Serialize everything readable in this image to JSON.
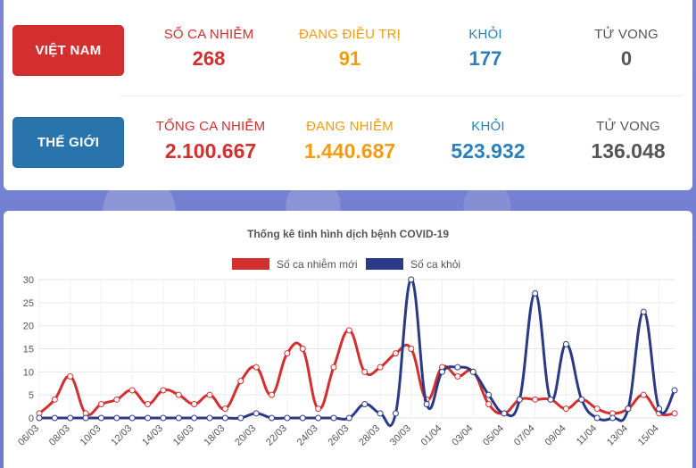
{
  "vietnam": {
    "label": "VIỆT NAM",
    "stats": [
      {
        "label": "SỐ CA NHIỄM",
        "value": "268"
      },
      {
        "label": "ĐANG ĐIỀU TRỊ",
        "value": "91"
      },
      {
        "label": "KHỎI",
        "value": "177"
      },
      {
        "label": "TỬ VONG",
        "value": "0"
      }
    ]
  },
  "world": {
    "label": "THẾ GIỚI",
    "stats": [
      {
        "label": "TỔNG CA NHIỄM",
        "value": "2.100.667"
      },
      {
        "label": "ĐANG NHIỄM",
        "value": "1.440.687"
      },
      {
        "label": "KHỎI",
        "value": "523.932"
      },
      {
        "label": "TỬ VONG",
        "value": "136.048"
      }
    ]
  },
  "colors": {
    "red": "#d32f2f",
    "navy": "#2b3a86"
  },
  "chart_data": {
    "type": "line",
    "title": "Thống kê tình hình dịch bệnh COVID-19",
    "x": [
      "06/03",
      "07/03",
      "08/03",
      "09/03",
      "10/03",
      "11/03",
      "12/03",
      "13/03",
      "14/03",
      "15/03",
      "16/03",
      "17/03",
      "18/03",
      "19/03",
      "20/03",
      "21/03",
      "22/03",
      "23/03",
      "24/03",
      "25/03",
      "26/03",
      "27/03",
      "28/03",
      "29/03",
      "30/03",
      "31/03",
      "01/04",
      "02/04",
      "03/04",
      "04/04",
      "05/04",
      "06/04",
      "07/04",
      "08/04",
      "09/04",
      "10/04",
      "11/04",
      "12/04",
      "13/04",
      "14/04",
      "15/04",
      "16/04"
    ],
    "tick_labels": [
      "06/03",
      "08/03",
      "10/03",
      "12/03",
      "14/03",
      "16/03",
      "18/03",
      "20/03",
      "22/03",
      "24/03",
      "26/03",
      "28/03",
      "30/03",
      "01/04",
      "03/04",
      "05/04",
      "07/04",
      "09/04",
      "11/04",
      "13/04",
      "15/04"
    ],
    "ylim": [
      0,
      30
    ],
    "yticks": [
      "0",
      "5",
      "10",
      "15",
      "20",
      "25",
      "30"
    ],
    "legend_position": "top",
    "series": [
      {
        "name": "Số ca nhiễm mới",
        "color": "#d32f2f",
        "values": [
          1,
          4,
          9,
          1,
          3,
          4,
          6,
          3,
          6,
          5,
          3,
          5,
          2,
          8,
          11,
          5,
          14,
          15,
          2,
          11,
          19,
          10,
          11,
          14,
          15,
          4,
          11,
          9,
          10,
          3,
          1,
          4,
          4,
          4,
          2,
          4,
          2,
          1,
          2,
          5,
          1,
          1
        ]
      },
      {
        "name": "Số ca khỏi",
        "color": "#2b3a86",
        "values": [
          0,
          0,
          0,
          0,
          0,
          0,
          0,
          0,
          0,
          0,
          0,
          0,
          0,
          0,
          1,
          0,
          0,
          0,
          0,
          0,
          0,
          3,
          1,
          1,
          30,
          3,
          10,
          11,
          10,
          5,
          1,
          4,
          27,
          4,
          16,
          4,
          0,
          0,
          2,
          23,
          2,
          6
        ]
      }
    ]
  }
}
